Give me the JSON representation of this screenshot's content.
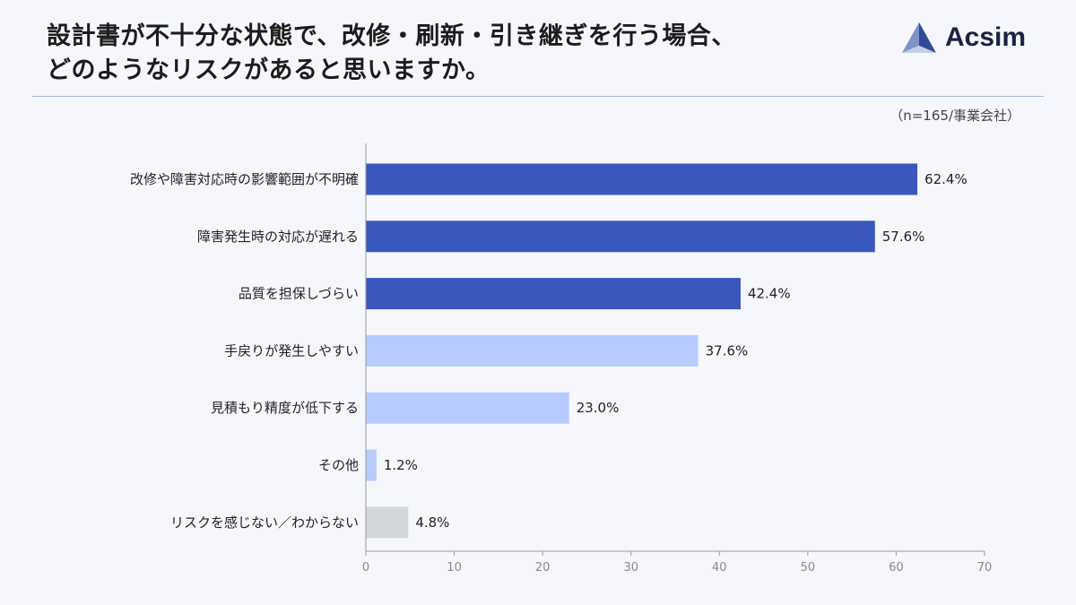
{
  "header": {
    "title_line1": "設計書が不十分な状態で、改修・刷新・引き継ぎを行う場合、",
    "title_line2": "どのようなリスクがあると思いますか。",
    "logo_text": "Acsim",
    "sample_note": "（n=165/事業会社）"
  },
  "colors": {
    "dark_bar": "#3a57bd",
    "light_bar": "#b8cbff",
    "gray_bar": "#d3d6db"
  },
  "chart_data": {
    "type": "bar",
    "orientation": "horizontal",
    "categories": [
      "改修や障害対応時の影響範囲が不明確",
      "障害発生時の対応が遅れる",
      "品質を担保しづらい",
      "手戻りが発生しやすい",
      "見積もり精度が低下する",
      "その他",
      "リスクを感じない／わからない"
    ],
    "values": [
      62.4,
      57.6,
      42.4,
      37.6,
      23.0,
      1.2,
      4.8
    ],
    "value_labels": [
      "62.4%",
      "57.6%",
      "42.4%",
      "37.6%",
      "23.0%",
      "1.2%",
      "4.8%"
    ],
    "bar_colors": [
      "dark",
      "dark",
      "dark",
      "light",
      "light",
      "light",
      "gray"
    ],
    "xlim": [
      0,
      70
    ],
    "xticks": [
      "0",
      "10",
      "20",
      "30",
      "40",
      "50",
      "60",
      "70"
    ],
    "grid": false
  }
}
